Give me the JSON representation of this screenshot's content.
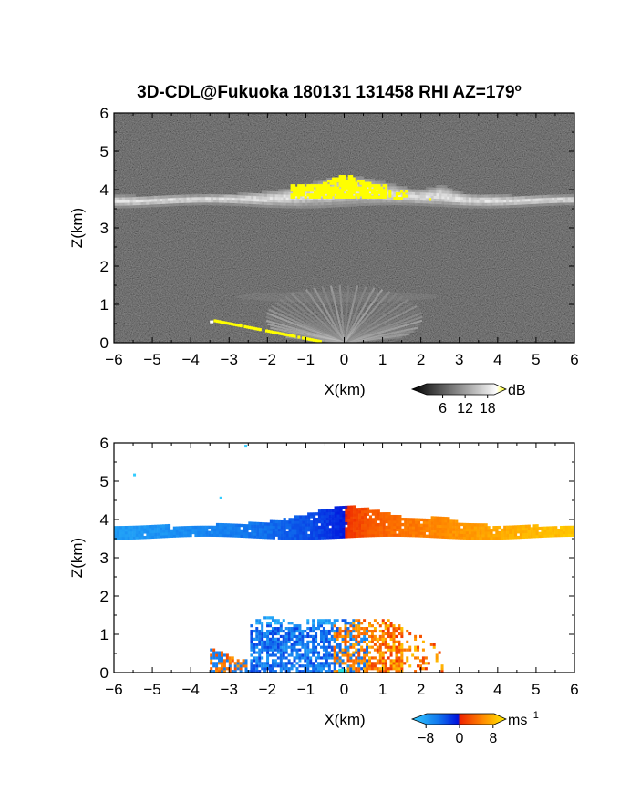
{
  "chart_data": [
    {
      "type": "heatmap",
      "title": "3D-CDL@Fukuoka 180131 131458 RHI AZ=179",
      "title_superscript": "o",
      "xlabel": "X(km)",
      "ylabel": "Z(km)",
      "xlim": [
        -6,
        6
      ],
      "ylim": [
        0,
        6
      ],
      "xticks": [
        -6,
        -5,
        -4,
        -3,
        -2,
        -1,
        0,
        1,
        2,
        3,
        4,
        5,
        6
      ],
      "yticks": [
        0,
        1,
        2,
        3,
        4,
        5,
        6
      ],
      "colorbar": {
        "label": "dB",
        "ticks": [
          6,
          12,
          18
        ],
        "range": [
          0,
          21
        ],
        "colormap": "grayscale-yellow"
      },
      "features": [
        {
          "name": "cloud_layer",
          "x_range": [
            -6,
            6
          ],
          "z_center": 3.7,
          "max_dB": 14
        },
        {
          "name": "cloud_top_peak",
          "x_range": [
            -2.0,
            3.0
          ],
          "z_range": [
            3.6,
            4.4
          ],
          "max_dB": 18
        },
        {
          "name": "ground_fan",
          "x_range": [
            -3.5,
            3.0
          ],
          "z_range": [
            0,
            1.5
          ],
          "max_dB": 12
        }
      ]
    },
    {
      "type": "heatmap",
      "xlabel": "X(km)",
      "ylabel": "Z(km)",
      "xlim": [
        -6,
        6
      ],
      "ylim": [
        0,
        6
      ],
      "xticks": [
        -6,
        -5,
        -4,
        -3,
        -2,
        -1,
        0,
        1,
        2,
        3,
        4,
        5,
        6
      ],
      "yticks": [
        0,
        1,
        2,
        3,
        4,
        5,
        6
      ],
      "colorbar": {
        "label": "ms",
        "label_superscript": "−1",
        "ticks": [
          "−8",
          "0",
          "8"
        ],
        "range": [
          -10,
          10
        ],
        "colormap": "cyan-blue-red-yellow"
      },
      "features": [
        {
          "name": "cloud_layer_velocity",
          "x_range": [
            -6,
            6
          ],
          "z_range": [
            3.5,
            4.5
          ],
          "velocity_at_left_edge": -7,
          "velocity_at_right_edge": 8
        },
        {
          "name": "near_ground_velocity",
          "x_range": [
            -3.5,
            2.5
          ],
          "z_range": [
            0,
            1.45
          ]
        }
      ]
    }
  ]
}
